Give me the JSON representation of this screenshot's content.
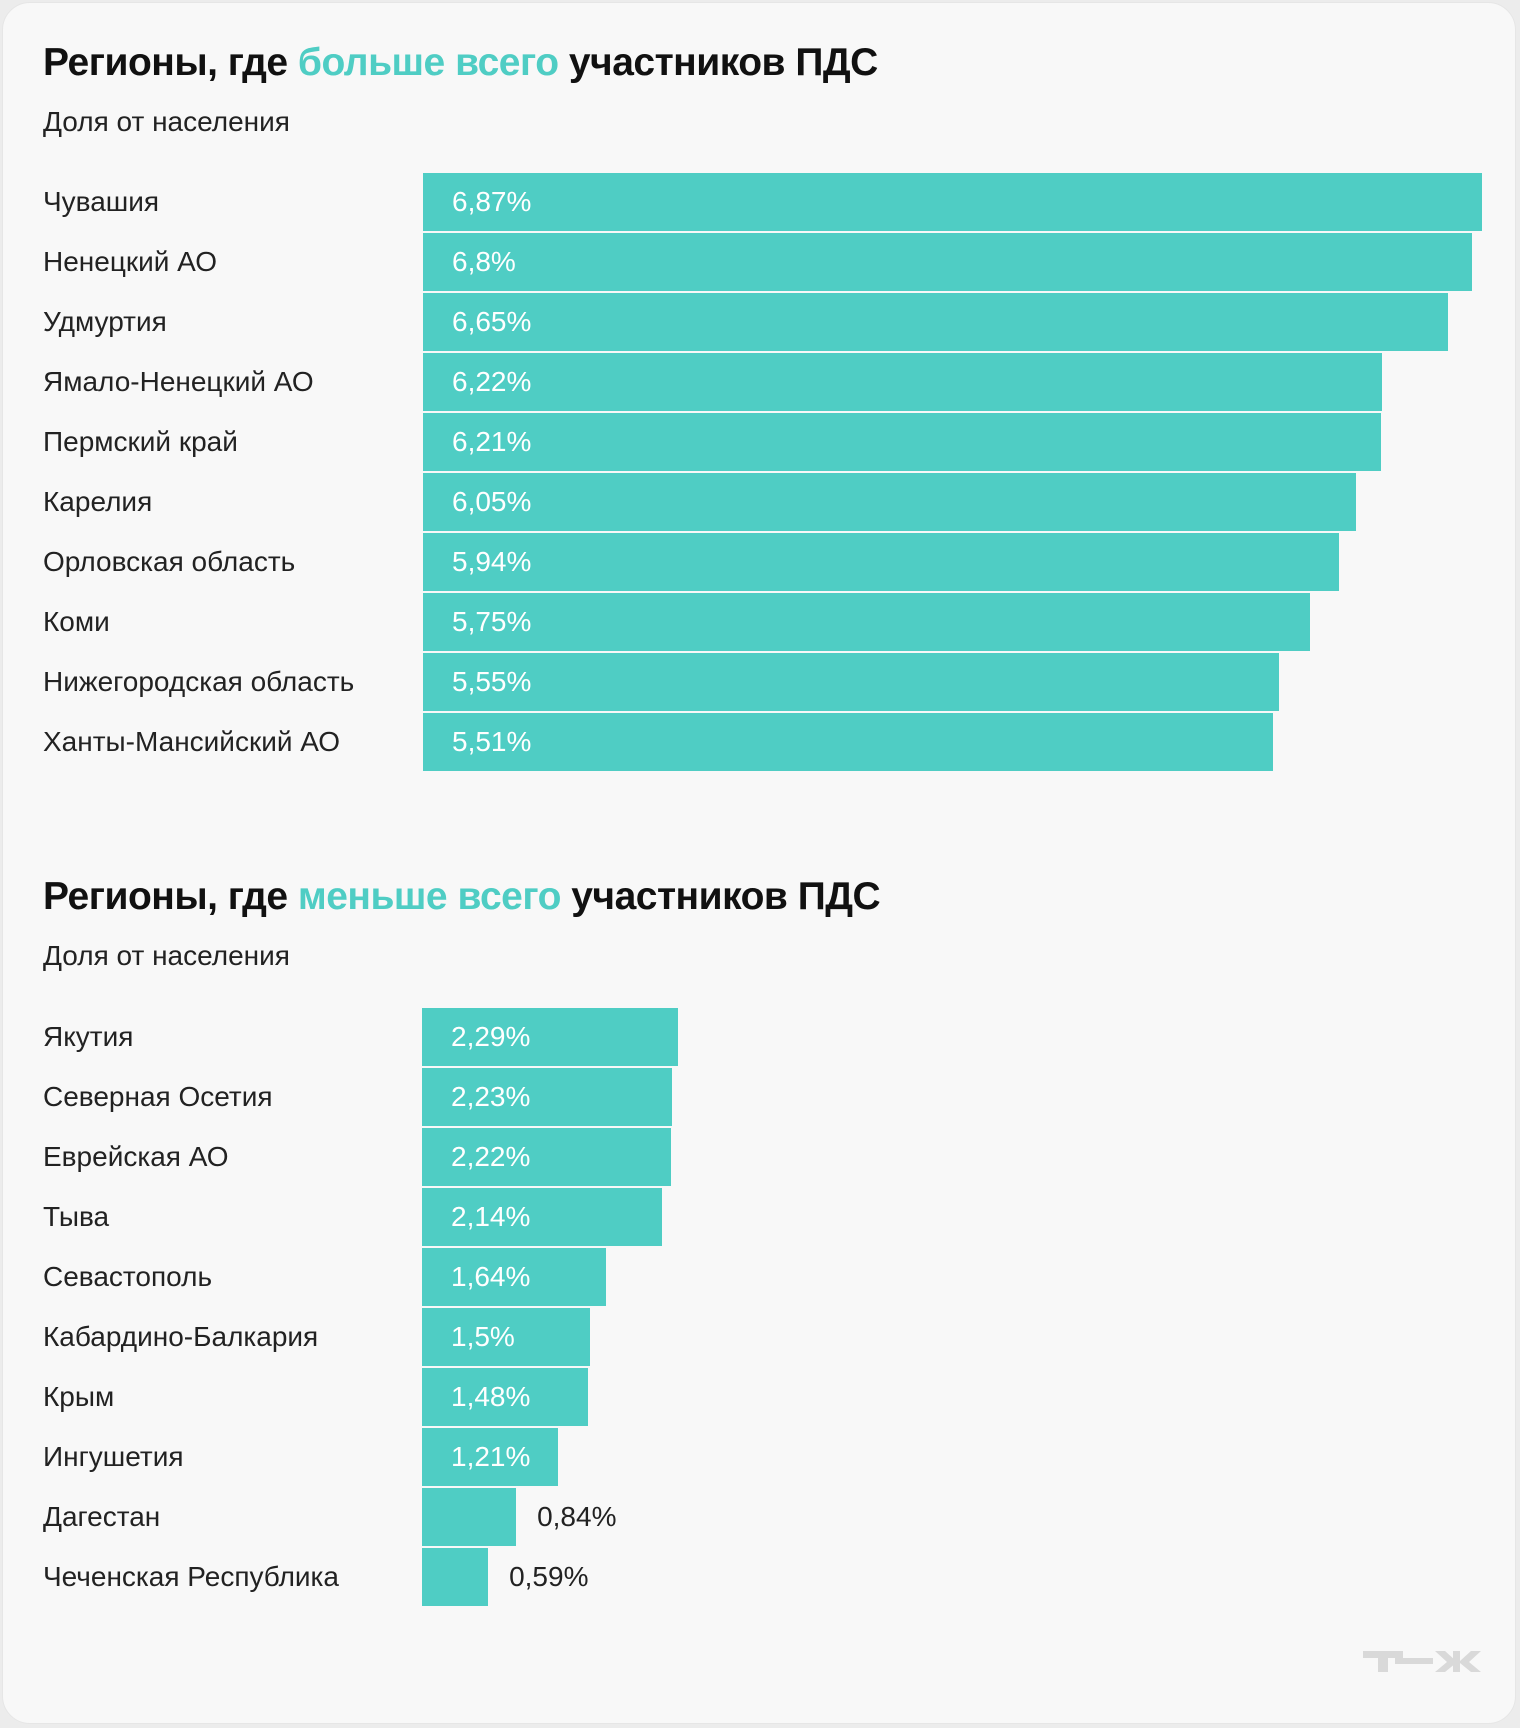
{
  "accent_color": "#4fcdc4",
  "logo": "Т—Ж",
  "chart_data": [
    {
      "type": "bar",
      "orientation": "horizontal",
      "title_parts": [
        "Регионы, где ",
        "больше всего",
        " участников ПДС"
      ],
      "subtitle": "Доля от населения",
      "categories": [
        "Чувашия",
        "Ненецкий АО",
        "Удмуртия",
        "Ямало-Ненецкий АО",
        "Пермский край",
        "Карелия",
        "Орловская область",
        "Коми",
        "Нижегородская область",
        "Ханты-Мансийский АО"
      ],
      "values": [
        6.87,
        6.8,
        6.65,
        6.22,
        6.21,
        6.05,
        5.94,
        5.75,
        5.55,
        5.51
      ],
      "labels": [
        "6,87%",
        "6,8%",
        "6,65%",
        "6,22%",
        "6,21%",
        "6,05%",
        "5,94%",
        "5,75%",
        "5,55%",
        "5,51%"
      ],
      "unit": "%"
    },
    {
      "type": "bar",
      "orientation": "horizontal",
      "title_parts": [
        "Регионы, где ",
        "меньше всего",
        " участников ПДС"
      ],
      "subtitle": "Доля от населения",
      "categories": [
        "Якутия",
        "Северная Осетия",
        "Еврейская АО",
        "Тыва",
        "Севастополь",
        "Кабардино-Балкария",
        "Крым",
        "Ингушетия",
        "Дагестан",
        "Чеченская Республика"
      ],
      "values": [
        2.29,
        2.23,
        2.22,
        2.14,
        1.64,
        1.5,
        1.48,
        1.21,
        0.84,
        0.59
      ],
      "labels": [
        "2,29%",
        "2,23%",
        "2,22%",
        "2,14%",
        "1,64%",
        "1,5%",
        "1,48%",
        "1,21%",
        "0,84%",
        "0,59%"
      ],
      "unit": "%"
    }
  ]
}
